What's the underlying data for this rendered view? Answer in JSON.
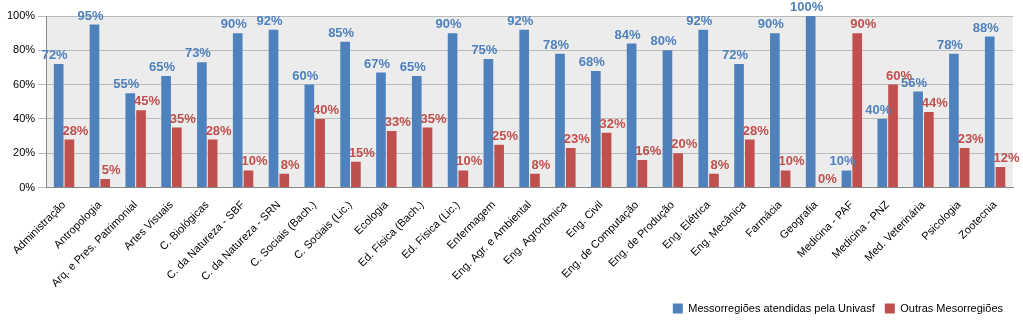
{
  "chart_data": {
    "type": "bar",
    "categories": [
      "Administração",
      "Antropologia",
      "Arq. e Pres. Patrimonial",
      "Artes Visuais",
      "C. Biológicas",
      "C. da Natureza - SBF",
      "C. da Natureza - SRN",
      "C. Sociais (Bach.)",
      "C. Sociais (Lic.)",
      "Ecologia",
      "Ed. Física (Bach.)",
      "Ed. Física (Lic.)",
      "Enfermagem",
      "Eng. Agr. e Ambiental",
      "Eng. Agronômica",
      "Eng. Civil",
      "Eng. de Computação",
      "Eng. de Produção",
      "Eng. Elétrica",
      "Eng. Mecânica",
      "Farmácia",
      "Geografia",
      "Medicina - PAF",
      "Medicina - PNZ",
      "Med. Veterinária",
      "Psicologia",
      "Zootecnia"
    ],
    "series": [
      {
        "name": "Messorregiões atendidas pela Univasf",
        "color": "#4f81bd",
        "values": [
          72,
          95,
          55,
          65,
          73,
          90,
          92,
          60,
          85,
          67,
          65,
          90,
          75,
          92,
          78,
          68,
          84,
          80,
          92,
          72,
          90,
          100,
          10,
          40,
          56,
          78,
          88
        ],
        "value_labels": [
          "72%",
          "95%",
          "55%",
          "65%",
          "73%",
          "90%",
          "92%",
          "60%",
          "85%",
          "67%",
          "65%",
          "90%",
          "75%",
          "92%",
          "78%",
          "68%",
          "84%",
          "80%",
          "92%",
          "72%",
          "90%",
          "100%",
          "10%",
          "40%",
          "56%",
          "78%",
          "88%"
        ]
      },
      {
        "name": "Outras Mesorregiões",
        "color": "#c0504d",
        "values": [
          28,
          5,
          45,
          35,
          28,
          10,
          8,
          40,
          15,
          33,
          35,
          10,
          25,
          8,
          23,
          32,
          16,
          20,
          8,
          28,
          10,
          0,
          90,
          60,
          44,
          23,
          12
        ],
        "value_labels": [
          "28%",
          "5%",
          "45%",
          "35%",
          "28%",
          "10%",
          "8%",
          "40%",
          "15%",
          "33%",
          "35%",
          "10%",
          "25%",
          "8%",
          "23%",
          "32%",
          "16%",
          "20%",
          "8%",
          "28%",
          "10%",
          "0%",
          "90%",
          "60%",
          "44%",
          "23%",
          "12%"
        ]
      }
    ],
    "ylim": [
      0,
      100
    ],
    "yticks": [
      {
        "value": 0,
        "label": "0%"
      },
      {
        "value": 20,
        "label": "20%"
      },
      {
        "value": 40,
        "label": "40%"
      },
      {
        "value": 60,
        "label": "60%"
      },
      {
        "value": 80,
        "label": "80%"
      },
      {
        "value": 100,
        "label": "100%"
      }
    ],
    "grid": true,
    "legend": "bottom-right",
    "data_labels": true
  }
}
